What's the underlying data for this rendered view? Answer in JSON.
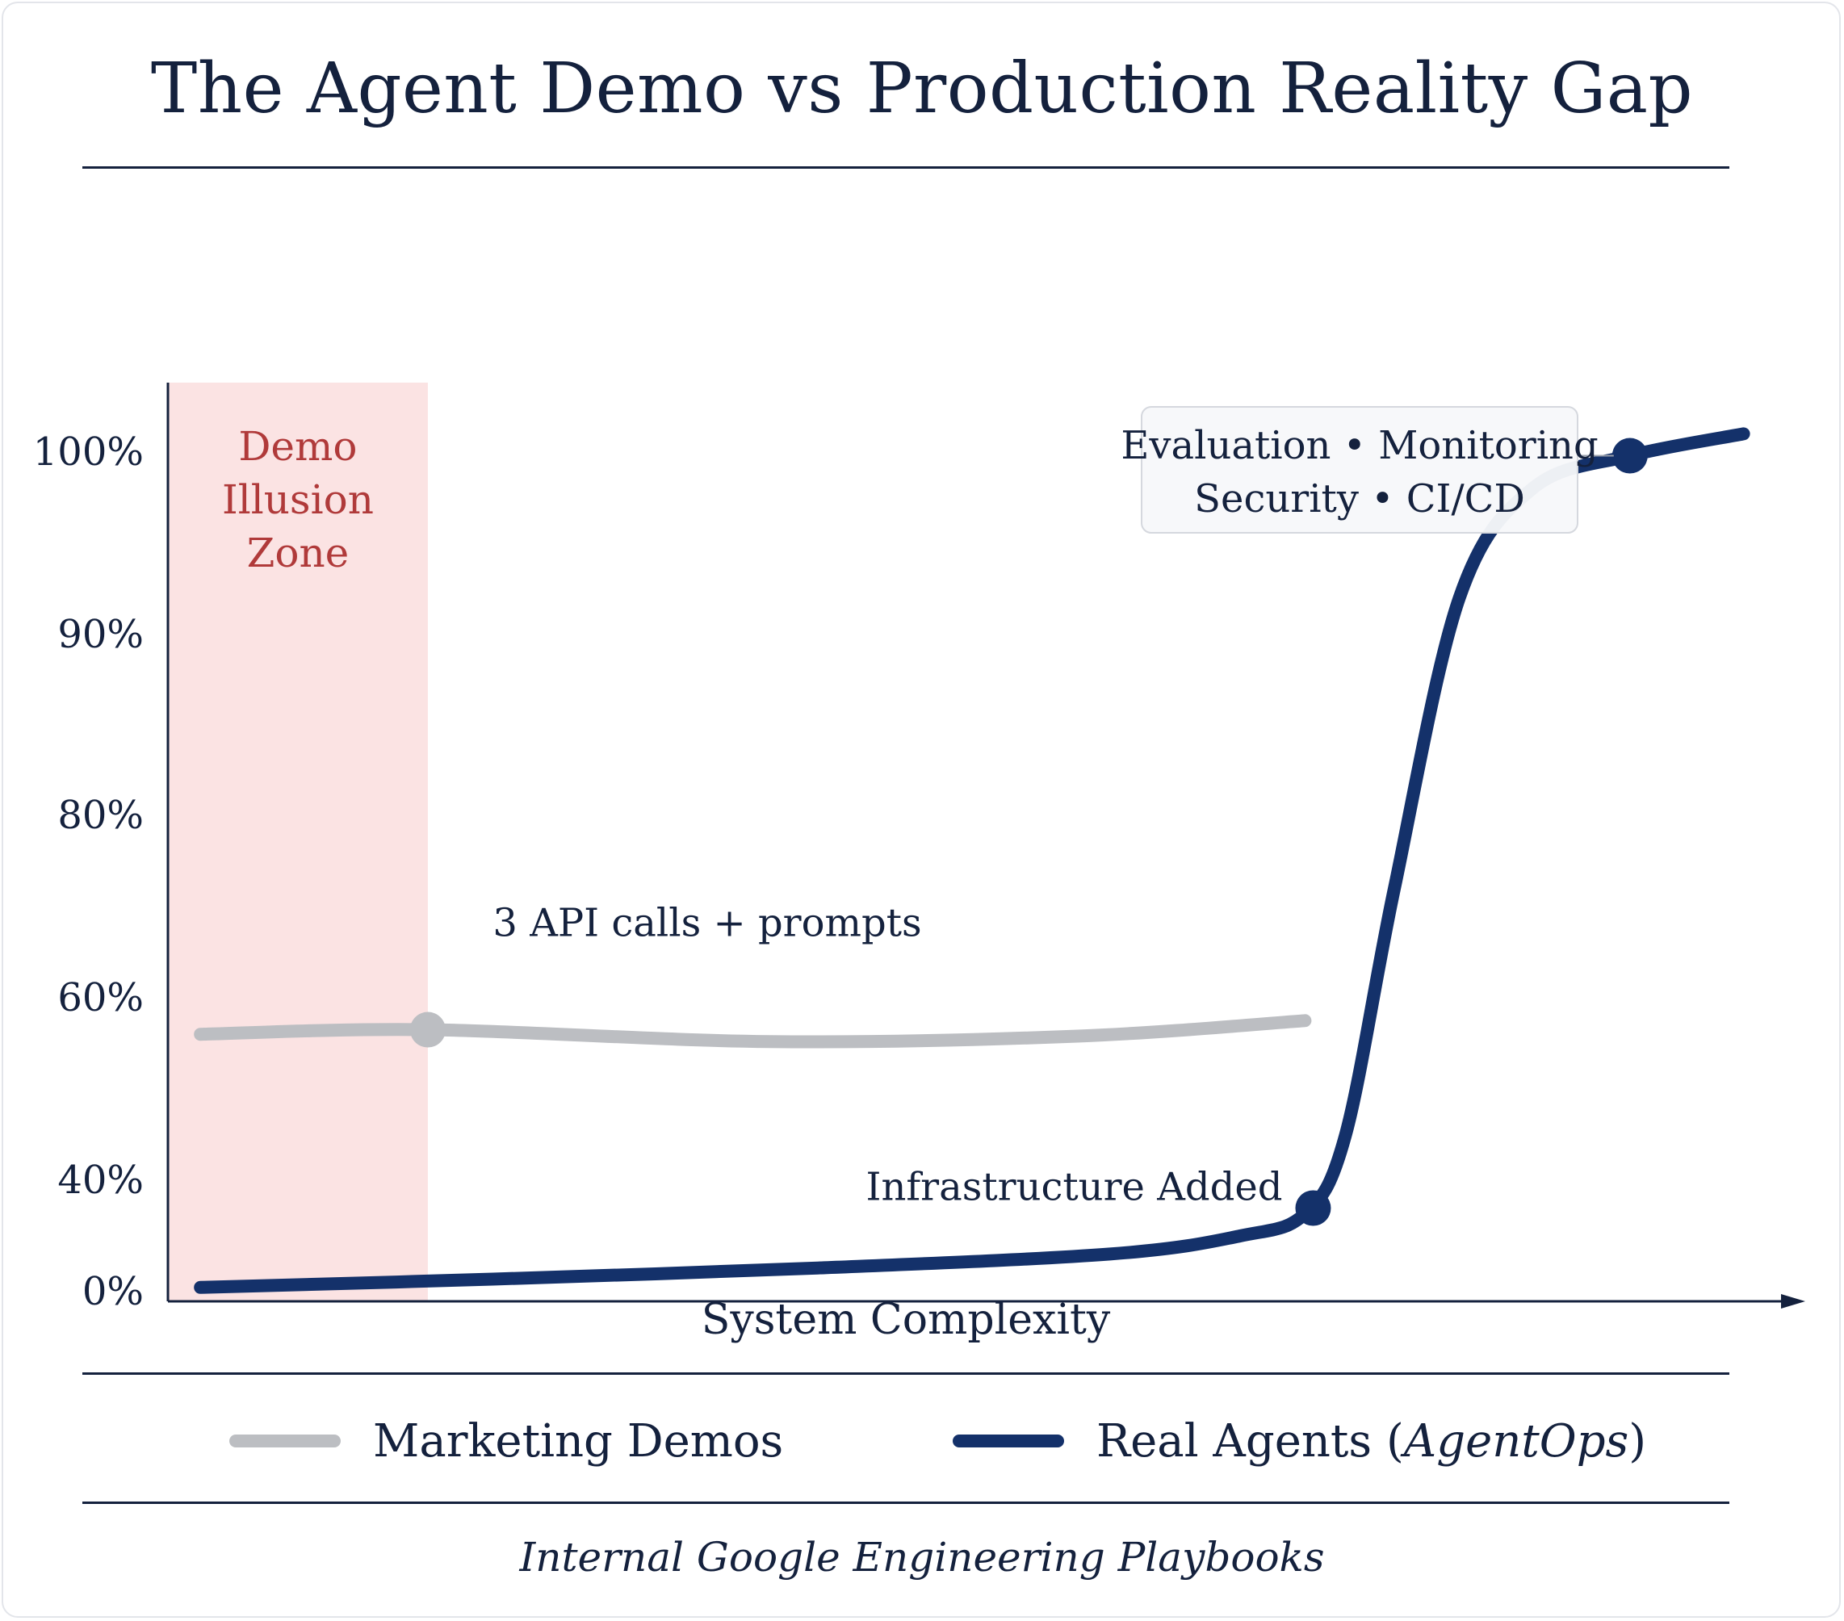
{
  "page": {
    "title": "The Agent Demo vs Production Reality Gap",
    "footer": "Internal Google Engineering Playbooks"
  },
  "legend": {
    "items": [
      {
        "label": "Marketing Demos",
        "color": "#bcbec2"
      },
      {
        "label_pre": "Real Agents (",
        "label_italic": "AgentOps",
        "label_post": ")",
        "color": "#14316a"
      }
    ]
  },
  "chart_data": {
    "type": "line",
    "title": "The Agent Demo vs Production Reality Gap",
    "xlabel": "System Complexity",
    "ylabel": "",
    "xlim": [
      0,
      10
    ],
    "y_ticks": [
      {
        "value": 100,
        "label": "100%"
      },
      {
        "value": 90,
        "label": "90%"
      },
      {
        "value": 80,
        "label": "80%"
      },
      {
        "value": 60,
        "label": "60%"
      },
      {
        "value": 40,
        "label": "40%"
      },
      {
        "value": 0,
        "label": "0%"
      }
    ],
    "region": {
      "label_lines": [
        "Demo",
        "Illusion",
        "Zone"
      ],
      "x_start": 0,
      "x_end": 1.6,
      "color": "#fbe3e3",
      "text_color": "#b03a3a"
    },
    "series": [
      {
        "name": "Marketing Demos",
        "color": "#bcbec2",
        "points": [
          [
            0.2,
            56
          ],
          [
            1.6,
            56.5
          ],
          [
            3.7,
            55.2
          ],
          [
            5.6,
            55.8
          ],
          [
            7.0,
            57.5
          ]
        ],
        "markers": [
          [
            1.6,
            56.5
          ]
        ]
      },
      {
        "name": "Real Agents (AgentOps)",
        "color": "#14316a",
        "points": [
          [
            0.2,
            1.5
          ],
          [
            2.0,
            4.5
          ],
          [
            4.0,
            8.5
          ],
          [
            5.8,
            13.5
          ],
          [
            6.6,
            20
          ],
          [
            7.0,
            28
          ],
          [
            7.25,
            45
          ],
          [
            7.55,
            72
          ],
          [
            7.95,
            92
          ],
          [
            8.4,
            98
          ],
          [
            9.0,
            99.8
          ],
          [
            9.7,
            101
          ]
        ],
        "markers": [
          [
            7.05,
            30
          ],
          [
            9.0,
            99.8
          ]
        ]
      }
    ],
    "annotations": [
      {
        "text": "3 API calls + prompts",
        "x": 2.0,
        "y": 65
      },
      {
        "text": "Infrastructure Added",
        "x": 7.05,
        "y": 30
      },
      {
        "lines": [
          "Evaluation • Monitoring",
          "Security • CI/CD"
        ],
        "x": 6.1,
        "y": 99.8
      }
    ],
    "grid": false
  }
}
